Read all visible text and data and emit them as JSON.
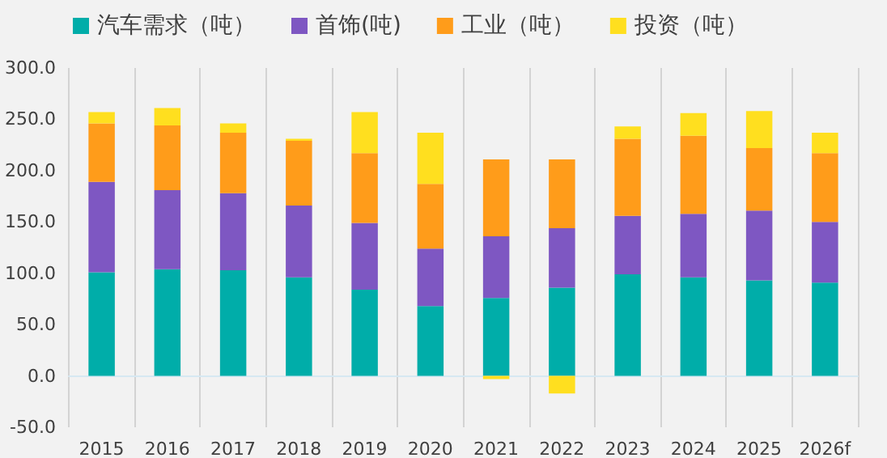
{
  "chart_data": {
    "type": "bar",
    "stacked": true,
    "categories": [
      "2015",
      "2016",
      "2017",
      "2018",
      "2019",
      "2020",
      "2021",
      "2022",
      "2023",
      "2024",
      "2025",
      "2026f"
    ],
    "series": [
      {
        "name": "汽车需求（吨）",
        "color": "#00ada9",
        "values": [
          101,
          104,
          103,
          96,
          84,
          68,
          76,
          86,
          99,
          96,
          93,
          91
        ]
      },
      {
        "name": "首饰(吨)",
        "color": "#7e57c2",
        "values": [
          88,
          77,
          75,
          70,
          65,
          56,
          60,
          58,
          57,
          62,
          68,
          59
        ]
      },
      {
        "name": "工业（吨）",
        "color": "#ff9c1a",
        "values": [
          57,
          63,
          59,
          63,
          68,
          63,
          75,
          67,
          75,
          76,
          61,
          67
        ]
      },
      {
        "name": "投资（吨）",
        "color": "#ffdf1f",
        "values": [
          11,
          17,
          9,
          2,
          40,
          50,
          -3,
          -17,
          12,
          22,
          36,
          20
        ]
      }
    ],
    "ylim": [
      -50,
      300
    ],
    "yticks": [
      {
        "value": -50,
        "label": "-50.0"
      },
      {
        "value": 0,
        "label": "0.0"
      },
      {
        "value": 50,
        "label": "50.0"
      },
      {
        "value": 100,
        "label": "100.0"
      },
      {
        "value": 150,
        "label": "150.0"
      },
      {
        "value": 200,
        "label": "200.0"
      },
      {
        "value": 250,
        "label": "250.0"
      },
      {
        "value": 300,
        "label": "300.0"
      }
    ],
    "grid": "x",
    "legend": "top left"
  }
}
